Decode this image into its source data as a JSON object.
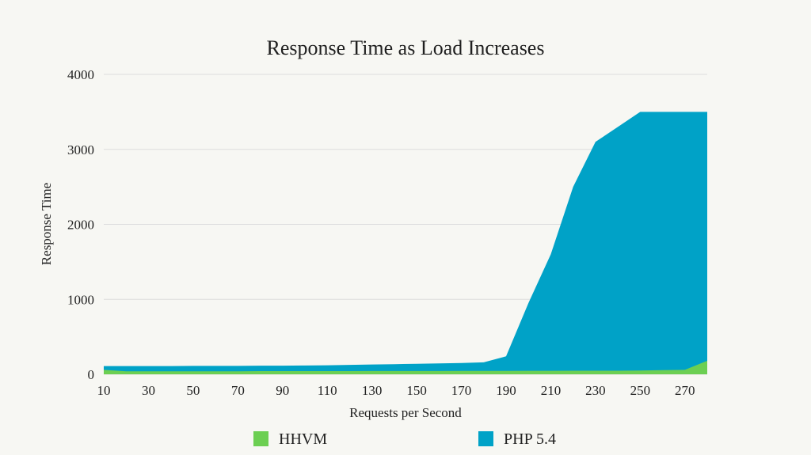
{
  "chart_data": {
    "type": "area",
    "title": "Response Time as Load Increases",
    "xlabel": "Requests per Second",
    "ylabel": "Response Time",
    "x": [
      10,
      20,
      30,
      40,
      50,
      60,
      70,
      80,
      90,
      100,
      110,
      120,
      130,
      140,
      150,
      160,
      170,
      180,
      190,
      200,
      210,
      220,
      230,
      240,
      250,
      260,
      270,
      280
    ],
    "x_tick_labels": [
      "10",
      "30",
      "50",
      "70",
      "90",
      "110",
      "130",
      "150",
      "170",
      "190",
      "210",
      "230",
      "250",
      "270"
    ],
    "x_tick_values": [
      10,
      30,
      50,
      70,
      90,
      110,
      130,
      150,
      170,
      190,
      210,
      230,
      250,
      270
    ],
    "y_tick_labels": [
      "0",
      "1000",
      "2000",
      "3000",
      "4000"
    ],
    "y_tick_values": [
      0,
      1000,
      2000,
      3000,
      4000
    ],
    "xlim": [
      10,
      280
    ],
    "ylim": [
      0,
      4000
    ],
    "grid": true,
    "legend_position": "bottom",
    "series": [
      {
        "name": "HHVM",
        "color": "#6ccf52",
        "values": [
          60,
          40,
          40,
          40,
          40,
          40,
          40,
          42,
          42,
          42,
          42,
          42,
          44,
          44,
          44,
          44,
          45,
          45,
          45,
          46,
          46,
          47,
          48,
          48,
          50,
          55,
          60,
          180
        ]
      },
      {
        "name": "PHP 5.4",
        "color": "#00a2c7",
        "values": [
          110,
          110,
          110,
          110,
          112,
          112,
          112,
          115,
          115,
          118,
          120,
          125,
          130,
          135,
          140,
          145,
          150,
          160,
          240,
          950,
          1600,
          2500,
          3100,
          3300,
          3500,
          3500,
          3500,
          3500
        ]
      }
    ]
  }
}
